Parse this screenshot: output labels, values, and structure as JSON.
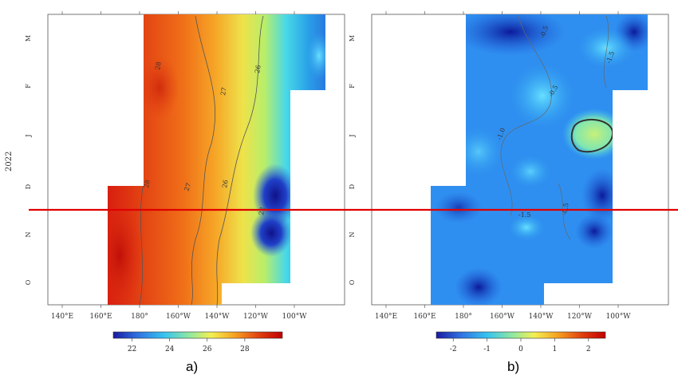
{
  "figure": {
    "year_label": "2022",
    "y_tick_labels": [
      "M",
      "F",
      "J",
      "D",
      "N",
      "O"
    ],
    "highlight_line_color": "#e00000"
  },
  "chart_data": [
    {
      "type": "heatmap",
      "panel_label": "a)",
      "title": "",
      "xlabel": "",
      "ylabel": "2022",
      "x_tick_labels": [
        "140°E",
        "160°E",
        "180°",
        "160°W",
        "140°W",
        "120°W",
        "100°W"
      ],
      "y_tick_labels": [
        "M",
        "F",
        "J",
        "D",
        "N",
        "O"
      ],
      "contour_labels": [
        "28",
        "27",
        "26",
        "28",
        "27",
        "26",
        "22"
      ],
      "colorbar": {
        "ticks": [
          "22",
          "24",
          "26",
          "28"
        ],
        "range": [
          21,
          30
        ],
        "colormap": [
          "#1a1aa0",
          "#2f6fe0",
          "#35c3f0",
          "#8fe8a0",
          "#f4f050",
          "#f6a020",
          "#e04010",
          "#c00000"
        ]
      }
    },
    {
      "type": "heatmap",
      "panel_label": "b)",
      "title": "",
      "xlabel": "",
      "ylabel": "",
      "x_tick_labels": [
        "140°E",
        "160°E",
        "180°",
        "160°W",
        "140°W",
        "120°W",
        "100°W"
      ],
      "y_tick_labels": [
        "M",
        "F",
        "J",
        "D",
        "N",
        "O"
      ],
      "contour_labels": [
        "-0.5",
        "-1.5",
        "-0.5",
        "-1.0",
        "-1.5",
        "-0.5"
      ],
      "colorbar": {
        "ticks": [
          "-2",
          "-1",
          "0",
          "1",
          "2"
        ],
        "range": [
          -2.5,
          2.5
        ],
        "colormap": [
          "#1a1aa0",
          "#2f6fe0",
          "#35c3f0",
          "#8fe8a0",
          "#f4f050",
          "#f6a020",
          "#e04010",
          "#c00000"
        ]
      }
    }
  ]
}
